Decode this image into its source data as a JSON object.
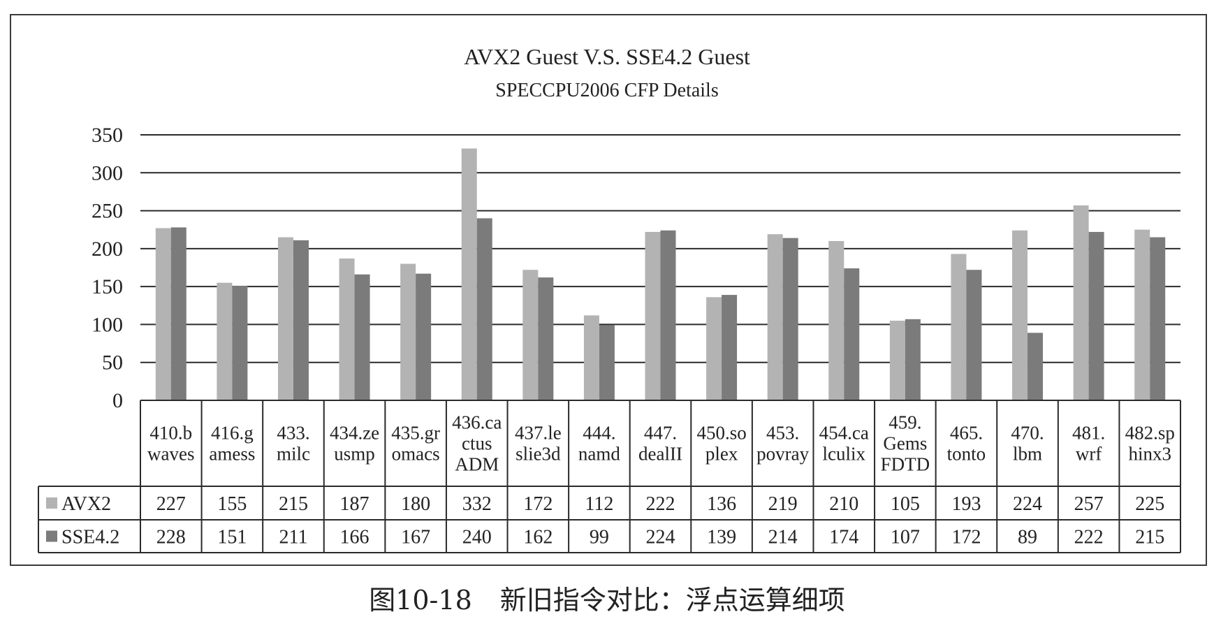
{
  "chart_data": {
    "type": "bar",
    "title": "AVX2 Guest V.S. SSE4.2 Guest",
    "subtitle": "SPECCPU2006 CFP Details",
    "categories": [
      [
        "410.b",
        "waves"
      ],
      [
        "416.g",
        "amess"
      ],
      [
        "433.",
        "milc"
      ],
      [
        "434.ze",
        "usmp"
      ],
      [
        "435.gr",
        "omacs"
      ],
      [
        "436.ca",
        "ctus",
        "ADM"
      ],
      [
        "437.le",
        "slie3d"
      ],
      [
        "444.",
        "namd"
      ],
      [
        "447.",
        "dealII"
      ],
      [
        "450.so",
        "plex"
      ],
      [
        "453.",
        "povray"
      ],
      [
        "454.ca",
        "lculix"
      ],
      [
        "459.",
        "Gems",
        "FDTD"
      ],
      [
        "465.",
        "tonto"
      ],
      [
        "470.",
        "lbm"
      ],
      [
        "481.",
        "wrf"
      ],
      [
        "482.sp",
        "hinx3"
      ]
    ],
    "series": [
      {
        "name": "AVX2",
        "color": "#b3b3b3",
        "values": [
          227,
          155,
          215,
          187,
          180,
          332,
          172,
          112,
          222,
          136,
          219,
          210,
          105,
          193,
          224,
          257,
          225
        ]
      },
      {
        "name": "SSE4.2",
        "color": "#7b7b7b",
        "values": [
          228,
          151,
          211,
          166,
          167,
          240,
          162,
          99,
          224,
          139,
          214,
          174,
          107,
          172,
          89,
          222,
          215
        ]
      }
    ],
    "ylim": [
      0,
      350
    ],
    "yticks": [
      0,
      50,
      100,
      150,
      200,
      250,
      300,
      350
    ],
    "grid": true,
    "legend": "data-table"
  },
  "caption": {
    "label": "图10-18",
    "text": "新旧指令对比：浮点运算细项"
  }
}
